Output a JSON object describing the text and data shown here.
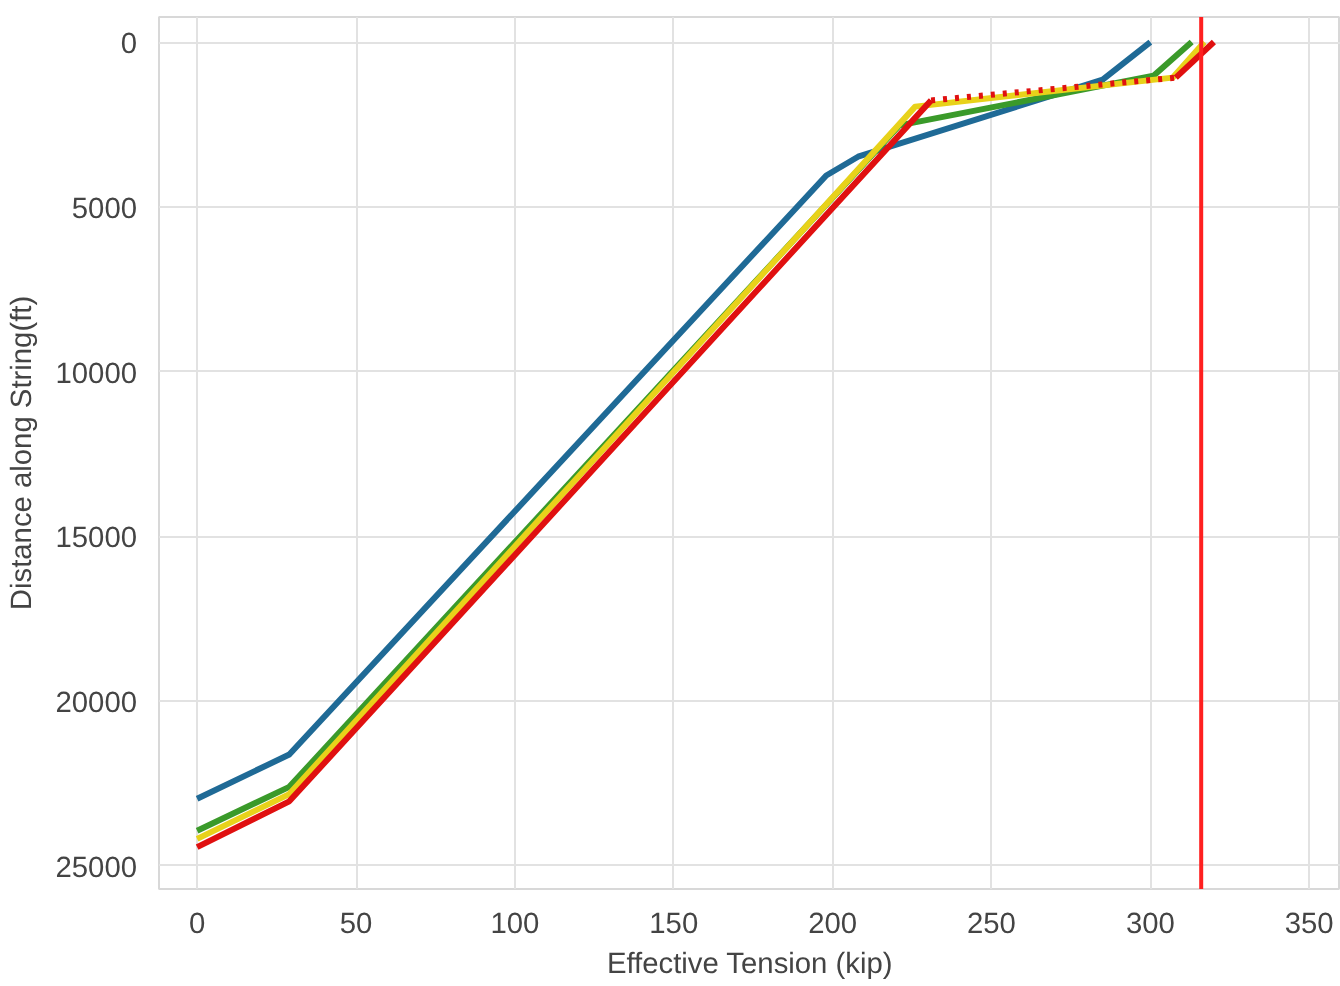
{
  "chart_data": {
    "type": "line",
    "xlabel": "Effective Tension (kip)",
    "ylabel": "Distance along String(ft)",
    "xlim": [
      -12,
      360
    ],
    "ylim": [
      25700,
      -760
    ],
    "xticks": [
      0,
      50,
      100,
      150,
      200,
      250,
      300,
      350
    ],
    "yticks": [
      0,
      5000,
      10000,
      15000,
      20000,
      25000
    ],
    "grid": true,
    "line_style": "solid",
    "series": [
      {
        "color": "#1f6a96",
        "x": [
          0,
          29,
          198,
          208,
          285,
          300
        ],
        "values": [
          22960,
          21620,
          4050,
          3480,
          1140,
          0
        ]
      },
      {
        "color": "#3a9a2a",
        "x": [
          0,
          29,
          221,
          301,
          313
        ],
        "values": [
          23930,
          22600,
          2530,
          1020,
          0
        ]
      },
      {
        "color": "#e8d21a",
        "x": [
          0,
          29,
          226,
          307,
          317
        ],
        "values": [
          24180,
          22820,
          1960,
          1080,
          0
        ]
      },
      {
        "color": "#e01010",
        "x": [
          0,
          29,
          231
        ],
        "values": [
          24430,
          23040,
          1770
        ]
      },
      {
        "color": "#e01010",
        "x": [
          231,
          308
        ],
        "values": [
          1770,
          1080
        ],
        "line_style": "dotted"
      },
      {
        "color": "#e01010",
        "x": [
          308,
          320
        ],
        "values": [
          1080,
          0
        ]
      }
    ],
    "ref_lines": [
      {
        "axis": "x",
        "value": 316,
        "color": "#ff2020"
      }
    ]
  }
}
